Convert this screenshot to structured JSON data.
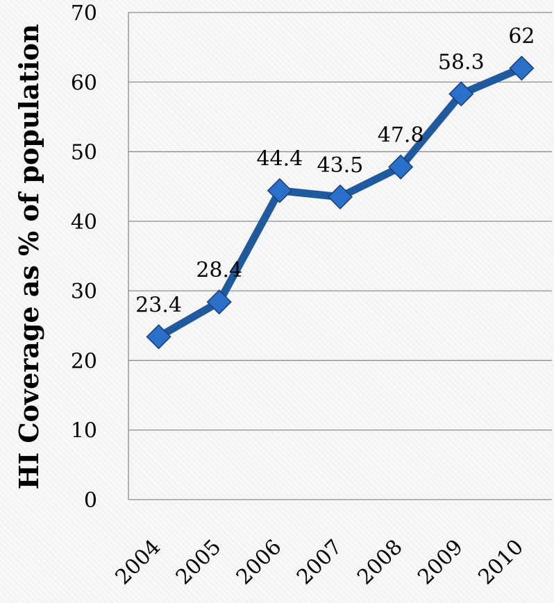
{
  "chart_data": {
    "type": "line",
    "title": "",
    "xlabel": "",
    "ylabel": "HI Coverage as % of population",
    "categories": [
      "2004",
      "2005",
      "2006",
      "2007",
      "2008",
      "2009",
      "2010"
    ],
    "series": [
      {
        "values": [
          23.4,
          28.4,
          44.4,
          43.5,
          47.8,
          58.3,
          62
        ]
      }
    ],
    "data_labels": [
      "23.4",
      "28.4",
      "44.4",
      "43.5",
      "47.8",
      "58.3",
      "62"
    ],
    "ylim": [
      0,
      70
    ],
    "yticks": [
      "0",
      "10",
      "20",
      "30",
      "40",
      "50",
      "60",
      "70"
    ],
    "grid": true,
    "marker": "diamond",
    "colors": {
      "line": "#1f5a9e",
      "marker": "#2a6fc9",
      "grid": "#8c8c8c"
    }
  }
}
